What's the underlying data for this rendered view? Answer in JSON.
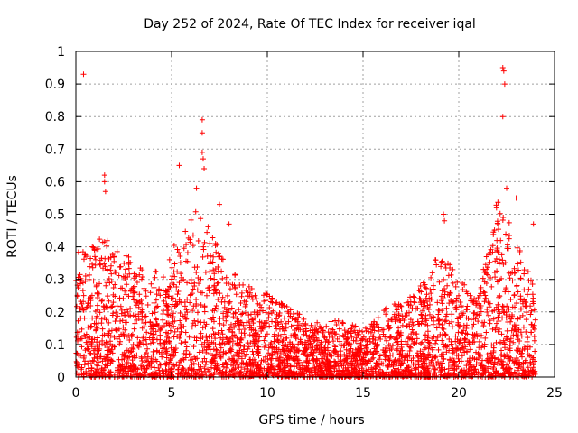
{
  "chart_data": {
    "type": "scatter",
    "title": "Day 252 of 2024, Rate Of TEC Index for receiver iqal",
    "xlabel": "GPS time / hours",
    "ylabel": "ROTI / TECUs",
    "xlim": [
      0,
      25
    ],
    "ylim": [
      0,
      1
    ],
    "x_ticks": [
      0,
      5,
      10,
      15,
      20,
      25
    ],
    "y_ticks": [
      0,
      0.1,
      0.2,
      0.3,
      0.4,
      0.5,
      0.6,
      0.7,
      0.8,
      0.9,
      1
    ],
    "x_tick_labels": [
      "0",
      "5",
      "10",
      "15",
      "20",
      "25"
    ],
    "y_tick_labels": [
      "0",
      "0.1",
      "0.2",
      "0.3",
      "0.4",
      "0.5",
      "0.6",
      "0.7",
      "0.8",
      "0.9",
      "1"
    ],
    "grid": true,
    "marker": "+",
    "series_color": "#ff0000",
    "envelope": {
      "description": "Approximate upper envelope of dense point cloud (hour, max ROTI)",
      "x": [
        0,
        0.5,
        1,
        1.5,
        2,
        2.5,
        3,
        3.5,
        4,
        4.5,
        5,
        5.5,
        6,
        6.5,
        7,
        7.5,
        8,
        8.5,
        9,
        9.5,
        10,
        10.5,
        11,
        11.5,
        12,
        12.5,
        13,
        13.5,
        14,
        14.5,
        15,
        15.5,
        16,
        16.5,
        17,
        17.5,
        18,
        18.5,
        19,
        19.5,
        20,
        20.5,
        21,
        21.5,
        22,
        22.5,
        23,
        23.5,
        24
      ],
      "y": [
        0.38,
        0.42,
        0.4,
        0.45,
        0.38,
        0.4,
        0.35,
        0.33,
        0.35,
        0.3,
        0.42,
        0.45,
        0.5,
        0.55,
        0.45,
        0.4,
        0.35,
        0.3,
        0.28,
        0.26,
        0.26,
        0.24,
        0.22,
        0.2,
        0.18,
        0.17,
        0.16,
        0.18,
        0.17,
        0.16,
        0.15,
        0.17,
        0.2,
        0.25,
        0.22,
        0.25,
        0.28,
        0.32,
        0.4,
        0.35,
        0.3,
        0.28,
        0.25,
        0.4,
        0.55,
        0.5,
        0.42,
        0.35,
        0.28
      ]
    },
    "outliers": [
      {
        "x": 0.4,
        "y": 0.93
      },
      {
        "x": 1.5,
        "y": 0.62
      },
      {
        "x": 1.5,
        "y": 0.6
      },
      {
        "x": 1.55,
        "y": 0.57
      },
      {
        "x": 5.4,
        "y": 0.65
      },
      {
        "x": 6.3,
        "y": 0.58
      },
      {
        "x": 6.6,
        "y": 0.79
      },
      {
        "x": 6.6,
        "y": 0.75
      },
      {
        "x": 6.6,
        "y": 0.69
      },
      {
        "x": 6.65,
        "y": 0.67
      },
      {
        "x": 6.7,
        "y": 0.64
      },
      {
        "x": 7.5,
        "y": 0.53
      },
      {
        "x": 8.0,
        "y": 0.47
      },
      {
        "x": 19.2,
        "y": 0.5
      },
      {
        "x": 19.25,
        "y": 0.48
      },
      {
        "x": 22.3,
        "y": 0.95
      },
      {
        "x": 22.35,
        "y": 0.94
      },
      {
        "x": 22.4,
        "y": 0.9
      },
      {
        "x": 22.3,
        "y": 0.8
      },
      {
        "x": 22.5,
        "y": 0.58
      },
      {
        "x": 23.0,
        "y": 0.55
      },
      {
        "x": 23.9,
        "y": 0.47
      }
    ]
  }
}
